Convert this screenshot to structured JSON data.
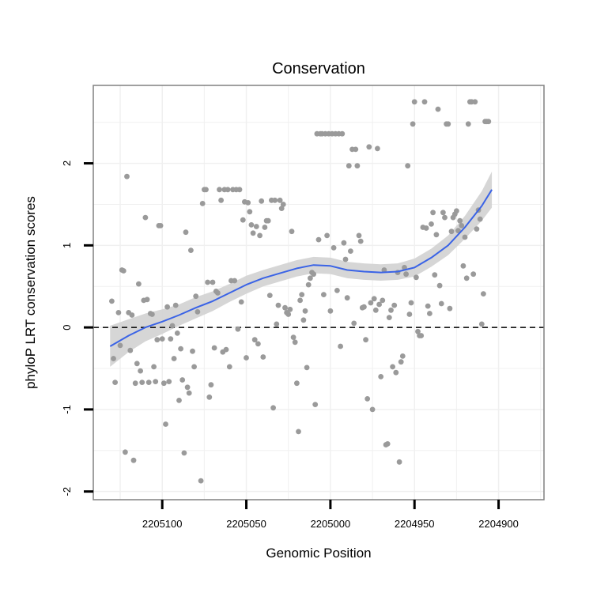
{
  "chart_data": {
    "type": "scatter",
    "title": "Conservation",
    "xlabel": "Genomic Position",
    "ylabel": "phyloP LRT conservation scores",
    "x_reversed": true,
    "xlim": [
      2205141,
      2204873
    ],
    "ylim": [
      -2.1,
      2.95
    ],
    "x_ticks": [
      2205100,
      2205050,
      2205000,
      2204950,
      2204900
    ],
    "x_tick_labels": [
      "2205100",
      "2205050",
      "2205000",
      "2204950",
      "2204900"
    ],
    "y_ticks": [
      -2,
      -1,
      0,
      1,
      2
    ],
    "y_tick_labels": [
      "-2",
      "-1",
      "0",
      "1",
      "2"
    ],
    "reference_line": {
      "y": 0,
      "style": "dashed",
      "color": "#000000"
    },
    "grid": true,
    "colors": {
      "points": "#9a9a9a",
      "smooth": "#3a63e6",
      "ribbon": "#d2d2d2",
      "panel_border": "#808080",
      "grid": "#f0f0f0"
    },
    "series": [
      {
        "type": "points",
        "points": [
          [
            2205130,
            0.32
          ],
          [
            2205129,
            -0.38
          ],
          [
            2205128,
            -0.67
          ],
          [
            2205126,
            0.18
          ],
          [
            2205125,
            -0.22
          ],
          [
            2205124,
            0.7
          ],
          [
            2205123,
            0.69
          ],
          [
            2205122,
            -1.52
          ],
          [
            2205121,
            1.84
          ],
          [
            2205120,
            0.18
          ],
          [
            2205119,
            -0.28
          ],
          [
            2205118,
            0.15
          ],
          [
            2205117,
            -1.62
          ],
          [
            2205116,
            -0.68
          ],
          [
            2205115,
            -0.44
          ],
          [
            2205114,
            0.53
          ],
          [
            2205113,
            -0.53
          ],
          [
            2205112,
            -0.67
          ],
          [
            2205111,
            0.33
          ],
          [
            2205110,
            1.34
          ],
          [
            2205109,
            0.34
          ],
          [
            2205108,
            -0.67
          ],
          [
            2205107,
            0.17
          ],
          [
            2205106,
            0.16
          ],
          [
            2205105,
            -0.48
          ],
          [
            2205104,
            -0.66
          ],
          [
            2205103,
            -0.15
          ],
          [
            2205102,
            1.24
          ],
          [
            2205101,
            1.24
          ],
          [
            2205100,
            -0.14
          ],
          [
            2205099,
            -0.68
          ],
          [
            2205098,
            -1.18
          ],
          [
            2205097,
            0.25
          ],
          [
            2205096,
            -0.66
          ],
          [
            2205095,
            -0.14
          ],
          [
            2205094,
            0.02
          ],
          [
            2205093,
            -0.38
          ],
          [
            2205092,
            0.27
          ],
          [
            2205091,
            -0.07
          ],
          [
            2205090,
            -0.89
          ],
          [
            2205089,
            -0.26
          ],
          [
            2205088,
            -0.64
          ],
          [
            2205087,
            -1.53
          ],
          [
            2205086,
            1.16
          ],
          [
            2205085,
            -0.73
          ],
          [
            2205084,
            -0.8
          ],
          [
            2205083,
            0.94
          ],
          [
            2205082,
            -0.29
          ],
          [
            2205081,
            -0.48
          ],
          [
            2205080,
            0.38
          ],
          [
            2205079,
            0.19
          ],
          [
            2205077,
            -1.87
          ],
          [
            2205076,
            1.51
          ],
          [
            2205075,
            1.68
          ],
          [
            2205074,
            1.68
          ],
          [
            2205073,
            0.55
          ],
          [
            2205072,
            -0.85
          ],
          [
            2205071,
            -0.7
          ],
          [
            2205070,
            0.55
          ],
          [
            2205069,
            -0.25
          ],
          [
            2205068,
            0.44
          ],
          [
            2205067,
            0.42
          ],
          [
            2205066,
            1.68
          ],
          [
            2205065,
            1.55
          ],
          [
            2205064,
            -0.3
          ],
          [
            2205063,
            1.68
          ],
          [
            2205062,
            -0.27
          ],
          [
            2205061,
            1.68
          ],
          [
            2205060,
            -0.48
          ],
          [
            2205059,
            0.57
          ],
          [
            2205058,
            1.68
          ],
          [
            2205057,
            0.57
          ],
          [
            2205056,
            1.68
          ],
          [
            2205055,
            -0.02
          ],
          [
            2205054,
            1.68
          ],
          [
            2205053,
            0.31
          ],
          [
            2205052,
            1.31
          ],
          [
            2205051,
            1.53
          ],
          [
            2205050,
            -0.37
          ],
          [
            2205049,
            1.52
          ],
          [
            2205048,
            1.41
          ],
          [
            2205047,
            1.25
          ],
          [
            2205046,
            1.15
          ],
          [
            2205045,
            -0.15
          ],
          [
            2205044,
            1.23
          ],
          [
            2205043,
            -0.2
          ],
          [
            2205042,
            1.12
          ],
          [
            2205041,
            1.54
          ],
          [
            2205040,
            -0.36
          ],
          [
            2205039,
            1.22
          ],
          [
            2205038,
            1.3
          ],
          [
            2205037,
            1.3
          ],
          [
            2205036,
            0.39
          ],
          [
            2205035,
            1.55
          ],
          [
            2205034,
            -0.98
          ],
          [
            2205033,
            1.55
          ],
          [
            2205032,
            0.04
          ],
          [
            2205031,
            0.27
          ],
          [
            2205030,
            1.55
          ],
          [
            2205029,
            1.45
          ],
          [
            2205028,
            1.5
          ],
          [
            2205027,
            0.24
          ],
          [
            2205026,
            0.18
          ],
          [
            2205025,
            0.16
          ],
          [
            2205024,
            0.22
          ],
          [
            2205023,
            1.17
          ],
          [
            2205022,
            -0.12
          ],
          [
            2205021,
            -0.18
          ],
          [
            2205020,
            -0.68
          ],
          [
            2205019,
            -1.27
          ],
          [
            2205018,
            0.33
          ],
          [
            2205017,
            0.4
          ],
          [
            2205016,
            0.09
          ],
          [
            2205015,
            0.2
          ],
          [
            2205014,
            -0.49
          ],
          [
            2205013,
            0.52
          ],
          [
            2205012,
            0.6
          ],
          [
            2205011,
            0.67
          ],
          [
            2205010,
            0.65
          ],
          [
            2205009,
            -0.94
          ],
          [
            2205008,
            2.36
          ],
          [
            2205007,
            1.07
          ],
          [
            2205006,
            2.36
          ],
          [
            2205005,
            2.36
          ],
          [
            2205004,
            0.4
          ],
          [
            2205003,
            2.36
          ],
          [
            2205002,
            1.12
          ],
          [
            2205001,
            2.36
          ],
          [
            2205000,
            0.2
          ],
          [
            2204999,
            2.36
          ],
          [
            2204998,
            0.97
          ],
          [
            2204997,
            2.36
          ],
          [
            2204996,
            0.45
          ],
          [
            2204995,
            2.36
          ],
          [
            2204994,
            -0.23
          ],
          [
            2204993,
            2.36
          ],
          [
            2204992,
            1.03
          ],
          [
            2204991,
            0.83
          ],
          [
            2204990,
            0.36
          ],
          [
            2204989,
            1.97
          ],
          [
            2204988,
            0.93
          ],
          [
            2204987,
            2.17
          ],
          [
            2204986,
            0.05
          ],
          [
            2204985,
            2.17
          ],
          [
            2204984,
            1.97
          ],
          [
            2204983,
            1.12
          ],
          [
            2204982,
            1.05
          ],
          [
            2204981,
            0.24
          ],
          [
            2204980,
            0.25
          ],
          [
            2204979,
            -0.15
          ],
          [
            2204978,
            -0.87
          ],
          [
            2204977,
            2.2
          ],
          [
            2204976,
            0.3
          ],
          [
            2204975,
            -1.0
          ],
          [
            2204974,
            0.35
          ],
          [
            2204973,
            0.21
          ],
          [
            2204972,
            2.18
          ],
          [
            2204971,
            0.28
          ],
          [
            2204970,
            -0.6
          ],
          [
            2204969,
            0.33
          ],
          [
            2204968,
            0.7
          ],
          [
            2204967,
            -1.43
          ],
          [
            2204966,
            -1.42
          ],
          [
            2204965,
            0.12
          ],
          [
            2204964,
            0.21
          ],
          [
            2204963,
            -0.48
          ],
          [
            2204962,
            0.27
          ],
          [
            2204961,
            -0.55
          ],
          [
            2204960,
            0.67
          ],
          [
            2204959,
            -1.64
          ],
          [
            2204958,
            -0.42
          ],
          [
            2204957,
            -0.35
          ],
          [
            2204956,
            0.73
          ],
          [
            2204955,
            0.65
          ],
          [
            2204954,
            1.97
          ],
          [
            2204953,
            0.16
          ],
          [
            2204952,
            0.3
          ],
          [
            2204951,
            2.48
          ],
          [
            2204950,
            2.75
          ],
          [
            2204949,
            0.61
          ],
          [
            2204948,
            -0.05
          ],
          [
            2204947,
            -0.1
          ],
          [
            2204946,
            -0.1
          ],
          [
            2204945,
            1.22
          ],
          [
            2204944,
            2.75
          ],
          [
            2204943,
            1.21
          ],
          [
            2204942,
            0.26
          ],
          [
            2204941,
            0.17
          ],
          [
            2204940,
            1.26
          ],
          [
            2204939,
            1.4
          ],
          [
            2204938,
            0.64
          ],
          [
            2204937,
            1.13
          ],
          [
            2204936,
            2.66
          ],
          [
            2204935,
            0.51
          ],
          [
            2204934,
            0.29
          ],
          [
            2204933,
            1.4
          ],
          [
            2204932,
            1.34
          ],
          [
            2204931,
            2.48
          ],
          [
            2204930,
            2.48
          ],
          [
            2204929,
            0.23
          ],
          [
            2204928,
            1.17
          ],
          [
            2204927,
            1.34
          ],
          [
            2204926,
            1.38
          ],
          [
            2204925,
            1.42
          ],
          [
            2204924,
            1.18
          ],
          [
            2204923,
            1.3
          ],
          [
            2204922,
            1.24
          ],
          [
            2204921,
            0.75
          ],
          [
            2204920,
            1.1
          ],
          [
            2204919,
            0.6
          ],
          [
            2204918,
            2.48
          ],
          [
            2204917,
            2.75
          ],
          [
            2204916,
            2.75
          ],
          [
            2204915,
            0.65
          ],
          [
            2204914,
            2.75
          ],
          [
            2204913,
            1.2
          ],
          [
            2204912,
            1.43
          ],
          [
            2204911,
            1.32
          ],
          [
            2204910,
            0.04
          ],
          [
            2204909,
            0.41
          ],
          [
            2204908,
            2.51
          ],
          [
            2204907,
            2.51
          ],
          [
            2204906,
            2.51
          ]
        ]
      },
      {
        "type": "smooth",
        "points": [
          [
            2205131,
            -0.23
          ],
          [
            2205120,
            -0.1
          ],
          [
            2205110,
            0.0
          ],
          [
            2205100,
            0.07
          ],
          [
            2205090,
            0.15
          ],
          [
            2205080,
            0.24
          ],
          [
            2205070,
            0.32
          ],
          [
            2205060,
            0.42
          ],
          [
            2205050,
            0.52
          ],
          [
            2205040,
            0.6
          ],
          [
            2205030,
            0.66
          ],
          [
            2205020,
            0.72
          ],
          [
            2205010,
            0.76
          ],
          [
            2205000,
            0.75
          ],
          [
            2204990,
            0.7
          ],
          [
            2204980,
            0.68
          ],
          [
            2204970,
            0.67
          ],
          [
            2204960,
            0.68
          ],
          [
            2204950,
            0.73
          ],
          [
            2204940,
            0.85
          ],
          [
            2204930,
            1.0
          ],
          [
            2204920,
            1.22
          ],
          [
            2204910,
            1.48
          ],
          [
            2204904,
            1.68
          ]
        ]
      },
      {
        "type": "ribbon",
        "points": [
          [
            2205131,
            -0.48,
            0.02
          ],
          [
            2205120,
            -0.3,
            0.1
          ],
          [
            2205110,
            -0.17,
            0.17
          ],
          [
            2205100,
            -0.08,
            0.22
          ],
          [
            2205090,
            0.02,
            0.28
          ],
          [
            2205080,
            0.11,
            0.37
          ],
          [
            2205070,
            0.2,
            0.44
          ],
          [
            2205060,
            0.31,
            0.53
          ],
          [
            2205050,
            0.41,
            0.63
          ],
          [
            2205040,
            0.5,
            0.7
          ],
          [
            2205030,
            0.56,
            0.76
          ],
          [
            2205020,
            0.62,
            0.82
          ],
          [
            2205010,
            0.66,
            0.86
          ],
          [
            2205000,
            0.65,
            0.85
          ],
          [
            2204990,
            0.6,
            0.8
          ],
          [
            2204980,
            0.58,
            0.78
          ],
          [
            2204970,
            0.57,
            0.77
          ],
          [
            2204960,
            0.58,
            0.78
          ],
          [
            2204950,
            0.62,
            0.84
          ],
          [
            2204940,
            0.74,
            0.96
          ],
          [
            2204930,
            0.88,
            1.12
          ],
          [
            2204920,
            1.08,
            1.36
          ],
          [
            2204910,
            1.3,
            1.66
          ],
          [
            2204904,
            1.46,
            1.9
          ]
        ]
      }
    ]
  }
}
